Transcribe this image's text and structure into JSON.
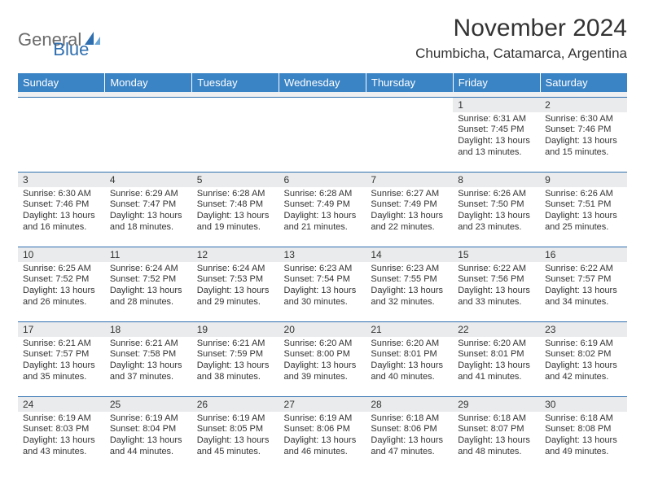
{
  "brand": {
    "part1": "General",
    "part2": "Blue"
  },
  "colors": {
    "header_bg": "#3a83c4",
    "header_text": "#ffffff",
    "daynum_bg": "#e9ebec",
    "border": "#2f6fb0",
    "logo_gray": "#6b6b6b",
    "logo_blue": "#2f6fb0",
    "body_text": "#333333",
    "spacer_bg": "#eef0f1",
    "page_bg": "#ffffff"
  },
  "title": "November 2024",
  "location": "Chumbicha, Catamarca, Argentina",
  "dayHeaders": [
    "Sunday",
    "Monday",
    "Tuesday",
    "Wednesday",
    "Thursday",
    "Friday",
    "Saturday"
  ],
  "weeks": [
    [
      {
        "n": "",
        "sr": "",
        "ss": "",
        "dl": ""
      },
      {
        "n": "",
        "sr": "",
        "ss": "",
        "dl": ""
      },
      {
        "n": "",
        "sr": "",
        "ss": "",
        "dl": ""
      },
      {
        "n": "",
        "sr": "",
        "ss": "",
        "dl": ""
      },
      {
        "n": "",
        "sr": "",
        "ss": "",
        "dl": ""
      },
      {
        "n": "1",
        "sr": "Sunrise: 6:31 AM",
        "ss": "Sunset: 7:45 PM",
        "dl": "Daylight: 13 hours and 13 minutes."
      },
      {
        "n": "2",
        "sr": "Sunrise: 6:30 AM",
        "ss": "Sunset: 7:46 PM",
        "dl": "Daylight: 13 hours and 15 minutes."
      }
    ],
    [
      {
        "n": "3",
        "sr": "Sunrise: 6:30 AM",
        "ss": "Sunset: 7:46 PM",
        "dl": "Daylight: 13 hours and 16 minutes."
      },
      {
        "n": "4",
        "sr": "Sunrise: 6:29 AM",
        "ss": "Sunset: 7:47 PM",
        "dl": "Daylight: 13 hours and 18 minutes."
      },
      {
        "n": "5",
        "sr": "Sunrise: 6:28 AM",
        "ss": "Sunset: 7:48 PM",
        "dl": "Daylight: 13 hours and 19 minutes."
      },
      {
        "n": "6",
        "sr": "Sunrise: 6:28 AM",
        "ss": "Sunset: 7:49 PM",
        "dl": "Daylight: 13 hours and 21 minutes."
      },
      {
        "n": "7",
        "sr": "Sunrise: 6:27 AM",
        "ss": "Sunset: 7:49 PM",
        "dl": "Daylight: 13 hours and 22 minutes."
      },
      {
        "n": "8",
        "sr": "Sunrise: 6:26 AM",
        "ss": "Sunset: 7:50 PM",
        "dl": "Daylight: 13 hours and 23 minutes."
      },
      {
        "n": "9",
        "sr": "Sunrise: 6:26 AM",
        "ss": "Sunset: 7:51 PM",
        "dl": "Daylight: 13 hours and 25 minutes."
      }
    ],
    [
      {
        "n": "10",
        "sr": "Sunrise: 6:25 AM",
        "ss": "Sunset: 7:52 PM",
        "dl": "Daylight: 13 hours and 26 minutes."
      },
      {
        "n": "11",
        "sr": "Sunrise: 6:24 AM",
        "ss": "Sunset: 7:52 PM",
        "dl": "Daylight: 13 hours and 28 minutes."
      },
      {
        "n": "12",
        "sr": "Sunrise: 6:24 AM",
        "ss": "Sunset: 7:53 PM",
        "dl": "Daylight: 13 hours and 29 minutes."
      },
      {
        "n": "13",
        "sr": "Sunrise: 6:23 AM",
        "ss": "Sunset: 7:54 PM",
        "dl": "Daylight: 13 hours and 30 minutes."
      },
      {
        "n": "14",
        "sr": "Sunrise: 6:23 AM",
        "ss": "Sunset: 7:55 PM",
        "dl": "Daylight: 13 hours and 32 minutes."
      },
      {
        "n": "15",
        "sr": "Sunrise: 6:22 AM",
        "ss": "Sunset: 7:56 PM",
        "dl": "Daylight: 13 hours and 33 minutes."
      },
      {
        "n": "16",
        "sr": "Sunrise: 6:22 AM",
        "ss": "Sunset: 7:57 PM",
        "dl": "Daylight: 13 hours and 34 minutes."
      }
    ],
    [
      {
        "n": "17",
        "sr": "Sunrise: 6:21 AM",
        "ss": "Sunset: 7:57 PM",
        "dl": "Daylight: 13 hours and 35 minutes."
      },
      {
        "n": "18",
        "sr": "Sunrise: 6:21 AM",
        "ss": "Sunset: 7:58 PM",
        "dl": "Daylight: 13 hours and 37 minutes."
      },
      {
        "n": "19",
        "sr": "Sunrise: 6:21 AM",
        "ss": "Sunset: 7:59 PM",
        "dl": "Daylight: 13 hours and 38 minutes."
      },
      {
        "n": "20",
        "sr": "Sunrise: 6:20 AM",
        "ss": "Sunset: 8:00 PM",
        "dl": "Daylight: 13 hours and 39 minutes."
      },
      {
        "n": "21",
        "sr": "Sunrise: 6:20 AM",
        "ss": "Sunset: 8:01 PM",
        "dl": "Daylight: 13 hours and 40 minutes."
      },
      {
        "n": "22",
        "sr": "Sunrise: 6:20 AM",
        "ss": "Sunset: 8:01 PM",
        "dl": "Daylight: 13 hours and 41 minutes."
      },
      {
        "n": "23",
        "sr": "Sunrise: 6:19 AM",
        "ss": "Sunset: 8:02 PM",
        "dl": "Daylight: 13 hours and 42 minutes."
      }
    ],
    [
      {
        "n": "24",
        "sr": "Sunrise: 6:19 AM",
        "ss": "Sunset: 8:03 PM",
        "dl": "Daylight: 13 hours and 43 minutes."
      },
      {
        "n": "25",
        "sr": "Sunrise: 6:19 AM",
        "ss": "Sunset: 8:04 PM",
        "dl": "Daylight: 13 hours and 44 minutes."
      },
      {
        "n": "26",
        "sr": "Sunrise: 6:19 AM",
        "ss": "Sunset: 8:05 PM",
        "dl": "Daylight: 13 hours and 45 minutes."
      },
      {
        "n": "27",
        "sr": "Sunrise: 6:19 AM",
        "ss": "Sunset: 8:06 PM",
        "dl": "Daylight: 13 hours and 46 minutes."
      },
      {
        "n": "28",
        "sr": "Sunrise: 6:18 AM",
        "ss": "Sunset: 8:06 PM",
        "dl": "Daylight: 13 hours and 47 minutes."
      },
      {
        "n": "29",
        "sr": "Sunrise: 6:18 AM",
        "ss": "Sunset: 8:07 PM",
        "dl": "Daylight: 13 hours and 48 minutes."
      },
      {
        "n": "30",
        "sr": "Sunrise: 6:18 AM",
        "ss": "Sunset: 8:08 PM",
        "dl": "Daylight: 13 hours and 49 minutes."
      }
    ]
  ]
}
